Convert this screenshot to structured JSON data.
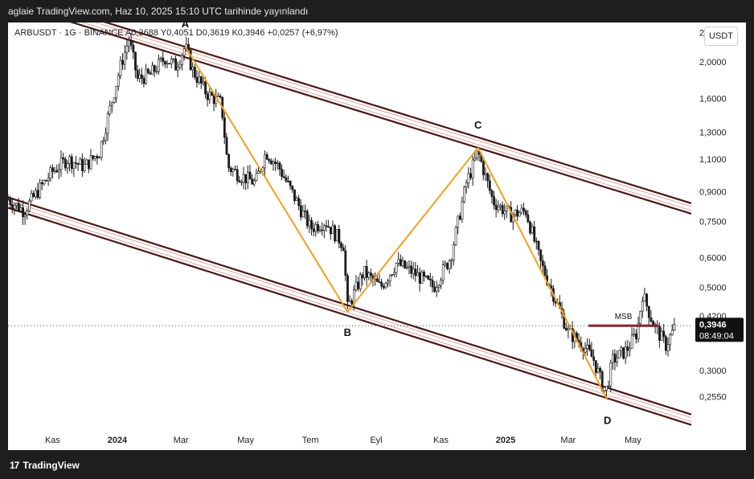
{
  "header": {
    "publish_text": "aglaie TradingView.com, Haz 10, 2025 15:10 UTC tarihinde yayınlandı"
  },
  "symbol_info": {
    "text": "ARBUSDT · 1G · BINANCE  A0,3688  Y0,4051  D0,3619  K0,3946  +0,0257 (+6,97%)"
  },
  "currency_button": {
    "label": "USDT"
  },
  "footer": {
    "logo_mark": "17",
    "logo_text": "TradingView"
  },
  "colors": {
    "background": "#ffffff",
    "candle": "#1a1a1a",
    "channel": "#4a1616",
    "channel_inner": "#d8a8a0",
    "zigzag": "#f0a020",
    "msb": "#8e1e2e",
    "price_label_bg": "#111111",
    "frame": "#1e1e1e"
  },
  "chart_data": {
    "type": "line",
    "title": "",
    "symbol": "ARBUSDT",
    "interval": "1G",
    "exchange": "BINANCE",
    "ohlc": {
      "open": "0,3688",
      "high": "0,4051",
      "low": "0,3619",
      "close": "0,3946",
      "change": "+0,0257",
      "change_pct": "+6,97%"
    },
    "y_scale": "log",
    "ylim": [
      0.21,
      2.55
    ],
    "xlim": [
      "2023-09-20",
      "2025-06-25"
    ],
    "y_ticks": [
      {
        "value": 2.4,
        "label": "2,4000"
      },
      {
        "value": 2.0,
        "label": "2,0000"
      },
      {
        "value": 1.6,
        "label": "1,6000"
      },
      {
        "value": 1.3,
        "label": "1,3000"
      },
      {
        "value": 1.1,
        "label": "1,1000"
      },
      {
        "value": 0.9,
        "label": "0,9000"
      },
      {
        "value": 0.75,
        "label": "0,7500"
      },
      {
        "value": 0.6,
        "label": "0,6000"
      },
      {
        "value": 0.5,
        "label": "0,5000"
      },
      {
        "value": 0.42,
        "label": "0,4200"
      },
      {
        "value": 0.3,
        "label": "0,3000"
      },
      {
        "value": 0.255,
        "label": "0,2550"
      }
    ],
    "x_ticks": [
      {
        "date": "2023-11-01",
        "label": "Kas",
        "bold": false
      },
      {
        "date": "2024-01-01",
        "label": "2024",
        "bold": true
      },
      {
        "date": "2024-03-01",
        "label": "Mar",
        "bold": false
      },
      {
        "date": "2024-05-01",
        "label": "May",
        "bold": false
      },
      {
        "date": "2024-07-01",
        "label": "Tem",
        "bold": false
      },
      {
        "date": "2024-09-01",
        "label": "Eyl",
        "bold": false
      },
      {
        "date": "2024-11-01",
        "label": "Kas",
        "bold": false
      },
      {
        "date": "2025-01-01",
        "label": "2025",
        "bold": true
      },
      {
        "date": "2025-03-01",
        "label": "Mar",
        "bold": false
      },
      {
        "date": "2025-05-01",
        "label": "May",
        "bold": false
      }
    ],
    "last_price": {
      "value": 0.3946,
      "label": "0,3946",
      "countdown": "08:49:04"
    },
    "price_path": [
      [
        "2023-09-20",
        0.86
      ],
      [
        "2023-10-05",
        0.8
      ],
      [
        "2023-10-20",
        0.92
      ],
      [
        "2023-11-01",
        1.02
      ],
      [
        "2023-11-15",
        1.1
      ],
      [
        "2023-12-01",
        1.05
      ],
      [
        "2023-12-15",
        1.15
      ],
      [
        "2023-12-25",
        1.5
      ],
      [
        "2024-01-05",
        2.0
      ],
      [
        "2024-01-12",
        2.3
      ],
      [
        "2024-01-20",
        1.8
      ],
      [
        "2024-02-01",
        1.85
      ],
      [
        "2024-02-15",
        2.05
      ],
      [
        "2024-02-25",
        1.95
      ],
      [
        "2024-03-05",
        2.2
      ],
      [
        "2024-03-12",
        1.9
      ],
      [
        "2024-03-25",
        1.65
      ],
      [
        "2024-04-08",
        1.55
      ],
      [
        "2024-04-14",
        1.05
      ],
      [
        "2024-04-25",
        1.0
      ],
      [
        "2024-05-10",
        0.95
      ],
      [
        "2024-05-20",
        1.15
      ],
      [
        "2024-06-01",
        1.05
      ],
      [
        "2024-06-15",
        0.88
      ],
      [
        "2024-07-01",
        0.72
      ],
      [
        "2024-07-15",
        0.75
      ],
      [
        "2024-08-01",
        0.65
      ],
      [
        "2024-08-05",
        0.44
      ],
      [
        "2024-08-20",
        0.55
      ],
      [
        "2024-09-05",
        0.5
      ],
      [
        "2024-09-20",
        0.58
      ],
      [
        "2024-10-05",
        0.55
      ],
      [
        "2024-10-25",
        0.5
      ],
      [
        "2024-11-10",
        0.6
      ],
      [
        "2024-11-25",
        0.95
      ],
      [
        "2024-12-06",
        1.15
      ],
      [
        "2024-12-20",
        0.85
      ],
      [
        "2025-01-05",
        0.78
      ],
      [
        "2025-01-20",
        0.8
      ],
      [
        "2025-02-03",
        0.58
      ],
      [
        "2025-02-15",
        0.48
      ],
      [
        "2025-03-01",
        0.38
      ],
      [
        "2025-03-15",
        0.35
      ],
      [
        "2025-03-25",
        0.32
      ],
      [
        "2025-04-05",
        0.26
      ],
      [
        "2025-04-12",
        0.32
      ],
      [
        "2025-04-25",
        0.34
      ],
      [
        "2025-05-05",
        0.38
      ],
      [
        "2025-05-10",
        0.48
      ],
      [
        "2025-05-20",
        0.4
      ],
      [
        "2025-06-01",
        0.35
      ],
      [
        "2025-06-10",
        0.3946
      ]
    ],
    "channel": {
      "upper": [
        [
          "2023-09-20",
          2.97
        ],
        [
          "2025-06-25",
          0.81
        ]
      ],
      "lower": [
        [
          "2023-09-20",
          0.84
        ],
        [
          "2025-06-25",
          0.221
        ]
      ]
    },
    "zigzag": [
      {
        "date": "2024-03-05",
        "value": 2.2,
        "label": "A"
      },
      {
        "date": "2024-08-05",
        "value": 0.43,
        "label": "B"
      },
      {
        "date": "2024-12-06",
        "value": 1.18,
        "label": "C"
      },
      {
        "date": "2025-04-07",
        "value": 0.25,
        "label": "D"
      }
    ],
    "msb": {
      "label": "MSB",
      "value": 0.395,
      "start": "2025-03-20",
      "end": "2025-05-25"
    }
  }
}
